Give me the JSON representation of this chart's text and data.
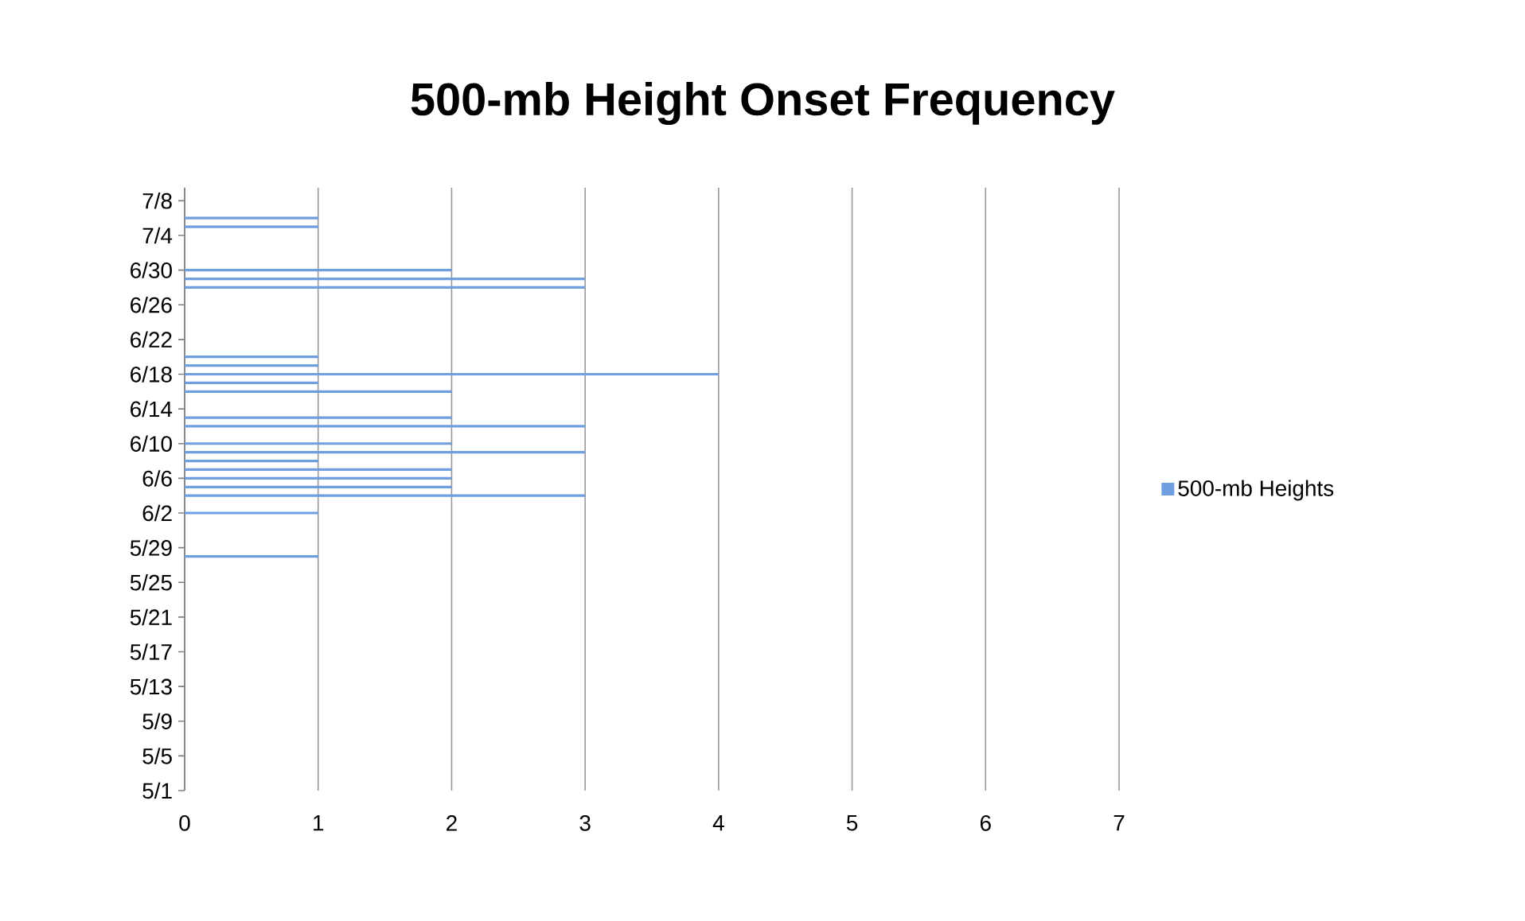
{
  "chart_data": {
    "type": "bar",
    "orientation": "horizontal",
    "title": "500-mb Height Onset Frequency",
    "categories": [
      "7/8",
      null,
      null,
      null,
      "7/4",
      null,
      null,
      null,
      "6/30",
      null,
      null,
      null,
      "6/26",
      null,
      null,
      null,
      "6/22",
      null,
      null,
      null,
      "6/18",
      null,
      null,
      null,
      "6/14",
      null,
      null,
      null,
      "6/10",
      null,
      null,
      null,
      "6/6",
      null,
      null,
      null,
      "6/2",
      null,
      null,
      null,
      "5/29",
      null,
      null,
      null,
      "5/25",
      null,
      null,
      null,
      "5/21",
      null,
      null,
      null,
      "5/17",
      null,
      null,
      null,
      "5/13",
      null,
      null,
      null,
      "5/9",
      null,
      null,
      null,
      "5/5",
      null,
      null,
      null,
      "5/1"
    ],
    "series": [
      {
        "name": "500-mb Heights",
        "color": "#6f9fe0",
        "values": [
          0,
          0,
          1,
          1,
          0,
          0,
          0,
          0,
          2,
          3,
          3,
          0,
          0,
          0,
          0,
          0,
          0,
          0,
          1,
          1,
          4,
          1,
          2,
          0,
          0,
          2,
          3,
          0,
          2,
          3,
          1,
          2,
          2,
          2,
          3,
          0,
          1,
          0,
          0,
          0,
          0,
          1,
          0,
          0,
          0,
          0,
          0,
          0,
          0,
          0,
          0,
          0,
          0,
          0,
          0,
          0,
          0,
          0,
          0,
          0,
          0,
          0,
          0,
          0,
          0,
          0,
          0,
          0,
          0
        ]
      }
    ],
    "xlim": [
      0,
      7
    ],
    "xticks": [
      0,
      1,
      2,
      3,
      4,
      5,
      6,
      7
    ],
    "grid": "x",
    "legend": "right"
  }
}
